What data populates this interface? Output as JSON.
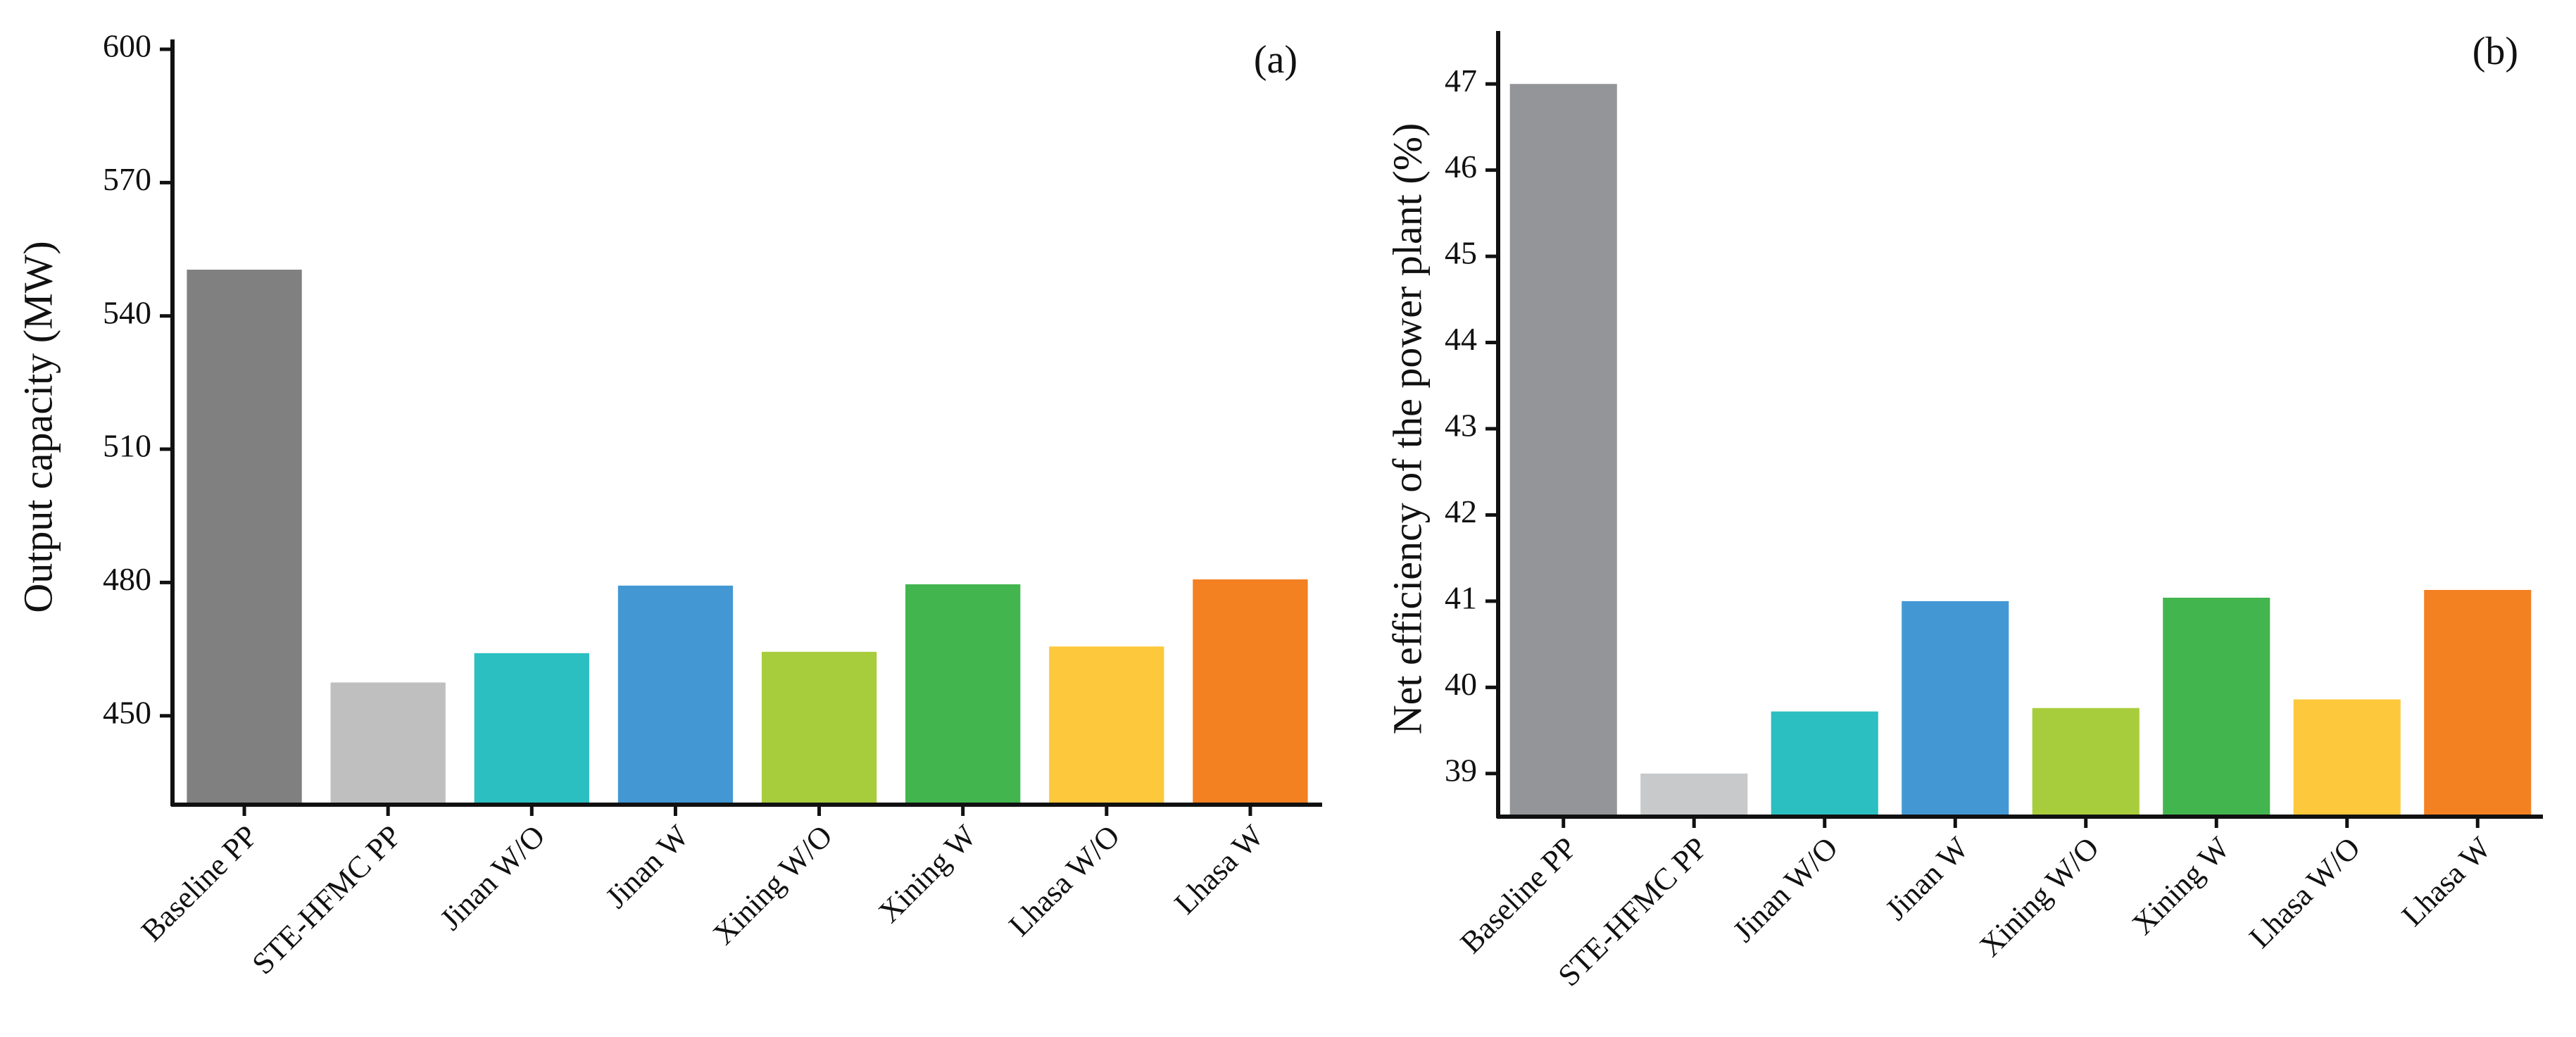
{
  "chart_data": [
    {
      "type": "bar",
      "panel_label": "(a)",
      "y_label": "Output capacity (MW)",
      "categories": [
        "Baseline PP",
        "STE-HFMC PP",
        "Jinan W/O",
        "Jinan W",
        "Xining W/O",
        "Xining W",
        "Lhasa W/O",
        "Lhasa W"
      ],
      "values": [
        550.4,
        457.5,
        464.1,
        479.3,
        464.4,
        479.6,
        465.6,
        480.7
      ],
      "colors": [
        "#808080",
        "#c0bfc0",
        "#2bbfc1",
        "#4398d4",
        "#a8cd3c",
        "#43b54f",
        "#fdc83c",
        "#f38021"
      ],
      "ylim": [
        430,
        600
      ],
      "yticks": [
        450,
        480,
        510,
        540,
        570,
        600
      ]
    },
    {
      "type": "bar",
      "panel_label": "(b)",
      "y_label": "Net efficiency of the power plant (%)",
      "categories": [
        "Baseline PP",
        "STE-HFMC PP",
        "Jinan W/O",
        "Jinan W",
        "Xining W/O",
        "Xining W",
        "Lhasa W/O",
        "Lhasa W"
      ],
      "values": [
        47.0,
        39.0,
        39.72,
        41.0,
        39.76,
        41.04,
        39.86,
        41.13
      ],
      "colors": [
        "#939598",
        "#c8c9cb",
        "#2bbfc1",
        "#4398d4",
        "#a8cd3c",
        "#43b54f",
        "#fdc83c",
        "#f38021"
      ],
      "ylim": [
        38.5,
        47.5
      ],
      "yticks": [
        39,
        40,
        41,
        42,
        43,
        44,
        45,
        46,
        47
      ]
    }
  ]
}
